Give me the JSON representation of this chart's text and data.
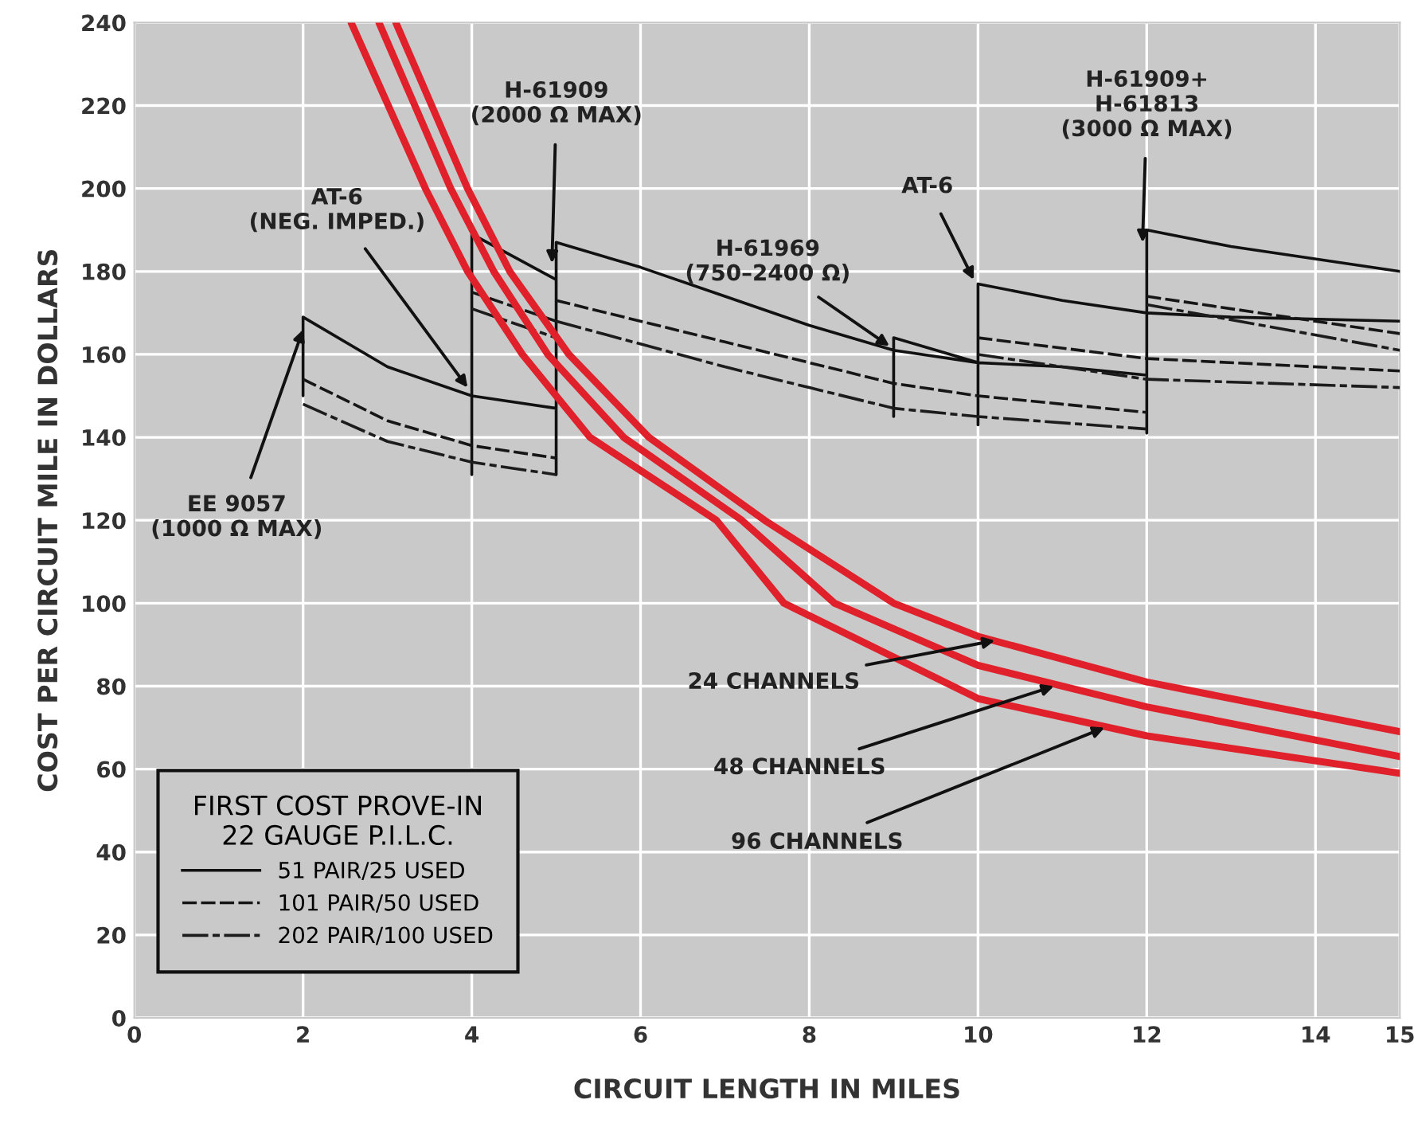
{
  "chart_data": {
    "type": "line",
    "xlabel": "CIRCUIT LENGTH IN MILES",
    "ylabel": "COST PER CIRCUIT MILE IN DOLLARS",
    "legend_title": "FIRST COST PROVE-IN\n22 GAUGE P.I.L.C.",
    "xlim": [
      0,
      15
    ],
    "ylim": [
      0,
      240
    ],
    "xticks": [
      0,
      2,
      4,
      6,
      8,
      10,
      12,
      14,
      15
    ],
    "yticks": [
      0,
      20,
      40,
      60,
      80,
      100,
      120,
      140,
      160,
      180,
      200,
      220,
      240
    ],
    "grid": true,
    "legend": "bottom left",
    "marker": "none",
    "series": [
      {
        "name": "51 PAIR/25 USED",
        "color": "#111111",
        "line_style": "solid",
        "x": [
          2,
          2,
          3,
          4,
          5,
          null,
          4,
          4,
          5,
          null,
          5,
          5,
          6,
          7,
          8,
          9,
          10,
          11,
          12,
          null,
          9,
          9,
          10,
          null,
          10,
          10,
          11,
          12,
          13,
          15,
          null,
          12,
          12,
          13,
          15
        ],
        "values": [
          150,
          169,
          157,
          150,
          147,
          null,
          131,
          189,
          178,
          null,
          131,
          187,
          181,
          174,
          167,
          161,
          158,
          157,
          155,
          null,
          145,
          164,
          158,
          null,
          143,
          177,
          173,
          170,
          169,
          168,
          null,
          141,
          190,
          186,
          180
        ]
      },
      {
        "name": "101 PAIR/50 USED",
        "color": "#161616",
        "line_style": "dashed",
        "x": [
          2,
          3,
          4,
          5,
          null,
          4,
          5,
          null,
          5,
          7,
          9,
          10,
          12,
          null,
          10,
          12,
          15,
          null,
          12,
          15
        ],
        "values": [
          154,
          144,
          138,
          135,
          null,
          175,
          168,
          null,
          173,
          163,
          153,
          150,
          146,
          null,
          164,
          159,
          156,
          null,
          174,
          165
        ]
      },
      {
        "name": "202 PAIR/100 USED",
        "color": "#1c1c1c",
        "line_style": "dashdot",
        "x": [
          2,
          3,
          4,
          5,
          null,
          4,
          5,
          null,
          5,
          7,
          9,
          10,
          12,
          null,
          10,
          12,
          15,
          null,
          12,
          15
        ],
        "values": [
          148,
          139,
          134,
          131,
          null,
          171,
          164,
          null,
          168,
          157,
          147,
          145,
          142,
          null,
          160,
          154,
          152,
          null,
          172,
          161
        ]
      },
      {
        "color": "#e0202a",
        "line_style": "solid",
        "x": [
          3.1,
          3.95,
          4.45,
          5.15,
          6.1,
          7.47,
          9.0,
          10,
          12,
          15
        ],
        "values": [
          240,
          200,
          180,
          160,
          140,
          120,
          100,
          92,
          81,
          69
        ]
      },
      {
        "color": "#e0202a",
        "line_style": "solid",
        "x": [
          2.9,
          3.75,
          4.26,
          4.9,
          5.8,
          7.2,
          8.3,
          10,
          12,
          15
        ],
        "values": [
          240,
          200,
          180,
          160,
          140,
          120,
          100,
          85,
          75,
          63
        ]
      },
      {
        "color": "#e0202a",
        "line_style": "solid",
        "x": [
          2.57,
          3.45,
          3.95,
          4.6,
          5.4,
          6.9,
          7.7,
          10,
          12,
          15
        ],
        "values": [
          240,
          200,
          180,
          160,
          140,
          120,
          100,
          77,
          68,
          59
        ]
      }
    ],
    "annotations": [
      {
        "text": "EE 9057\n(1000 Ω MAX)",
        "x": 2,
        "y": 166
      },
      {
        "text": "AT-6\n(NEG. IMPED.)",
        "x": 3.95,
        "y": 152
      },
      {
        "text": "H-61909\n(2000 Ω MAX)",
        "x": 4.95,
        "y": 182
      },
      {
        "text": "H-61969\n(750–2400 Ω)",
        "x": 8.95,
        "y": 162
      },
      {
        "text": "AT-6",
        "x": 9.95,
        "y": 178
      },
      {
        "text": "H-61909+\nH-61813\n(3000 Ω MAX)",
        "x": 11.95,
        "y": 187
      },
      {
        "text": "24 CHANNELS",
        "x": 10.2,
        "y": 91
      },
      {
        "text": "48 CHANNELS",
        "x": 10.9,
        "y": 80
      },
      {
        "text": "96 CHANNELS",
        "x": 11.5,
        "y": 70
      }
    ]
  }
}
